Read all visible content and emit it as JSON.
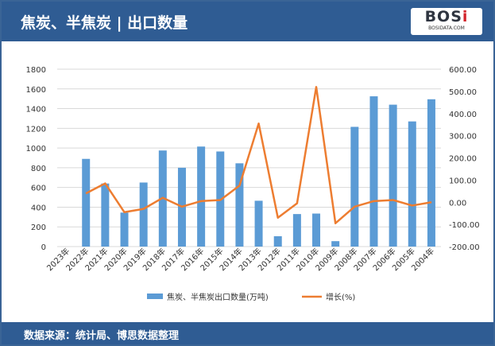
{
  "header": {
    "title": "焦炭、半焦炭 | 出口数量",
    "logo_text": "BOSi",
    "logo_sub": "BOSIDATA.COM"
  },
  "footer": {
    "source": "数据来源：统计局、博思数据整理"
  },
  "chart_data": {
    "type": "bar+line",
    "categories": [
      "2023年",
      "2022年",
      "2021年",
      "2020年",
      "2019年",
      "2018年",
      "2017年",
      "2016年",
      "2015年",
      "2014年",
      "2013年",
      "2012年",
      "2011年",
      "2010年",
      "2009年",
      "2008年",
      "2007年",
      "2006年",
      "2005年",
      "2004年"
    ],
    "series": [
      {
        "name": "焦炭、半焦炭出口数量(万吨)",
        "type": "bar",
        "axis": "left",
        "color": "#5b9bd5",
        "values": [
          0,
          890,
          640,
          345,
          650,
          975,
          800,
          1015,
          965,
          845,
          465,
          105,
          330,
          335,
          55,
          1215,
          1525,
          1440,
          1270,
          1495
        ]
      },
      {
        "name": "增长(%)",
        "type": "line",
        "axis": "right",
        "color": "#ed7d31",
        "values": [
          null,
          40,
          85,
          -45,
          -30,
          20,
          -20,
          5,
          10,
          75,
          355,
          -70,
          -5,
          520,
          -95,
          -20,
          5,
          10,
          -15,
          0
        ]
      }
    ],
    "left_axis": {
      "ylim": [
        0,
        1800
      ],
      "ticks": [
        "0",
        "200",
        "400",
        "600",
        "800",
        "1000",
        "1200",
        "1400",
        "1600",
        "1800"
      ]
    },
    "right_axis": {
      "ylim": [
        -200,
        600
      ],
      "ticks": [
        "-200.00",
        "-100.00",
        "0.00",
        "100.00",
        "200.00",
        "300.00",
        "400.00",
        "500.00",
        "600.00"
      ]
    },
    "grid": true,
    "legend": "bottom"
  }
}
